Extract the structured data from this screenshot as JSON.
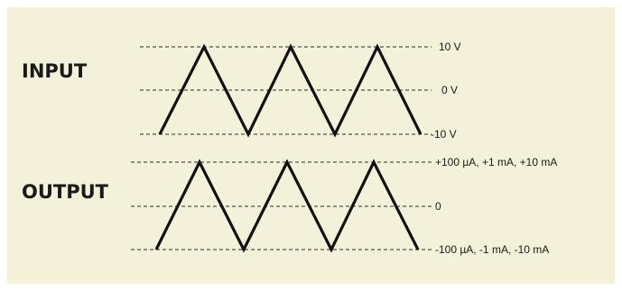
{
  "input": {
    "title": "INPUT",
    "levels": [
      "10 V",
      "0 V",
      "-10 V"
    ]
  },
  "output": {
    "title": "OUTPUT",
    "levels": [
      "+100 µA, +1 mA, +10 mA",
      "0",
      "-100 µA, -1 mA, -10 mA"
    ]
  },
  "colors": {
    "background": "#f3f1d9",
    "stroke": "#111111"
  }
}
